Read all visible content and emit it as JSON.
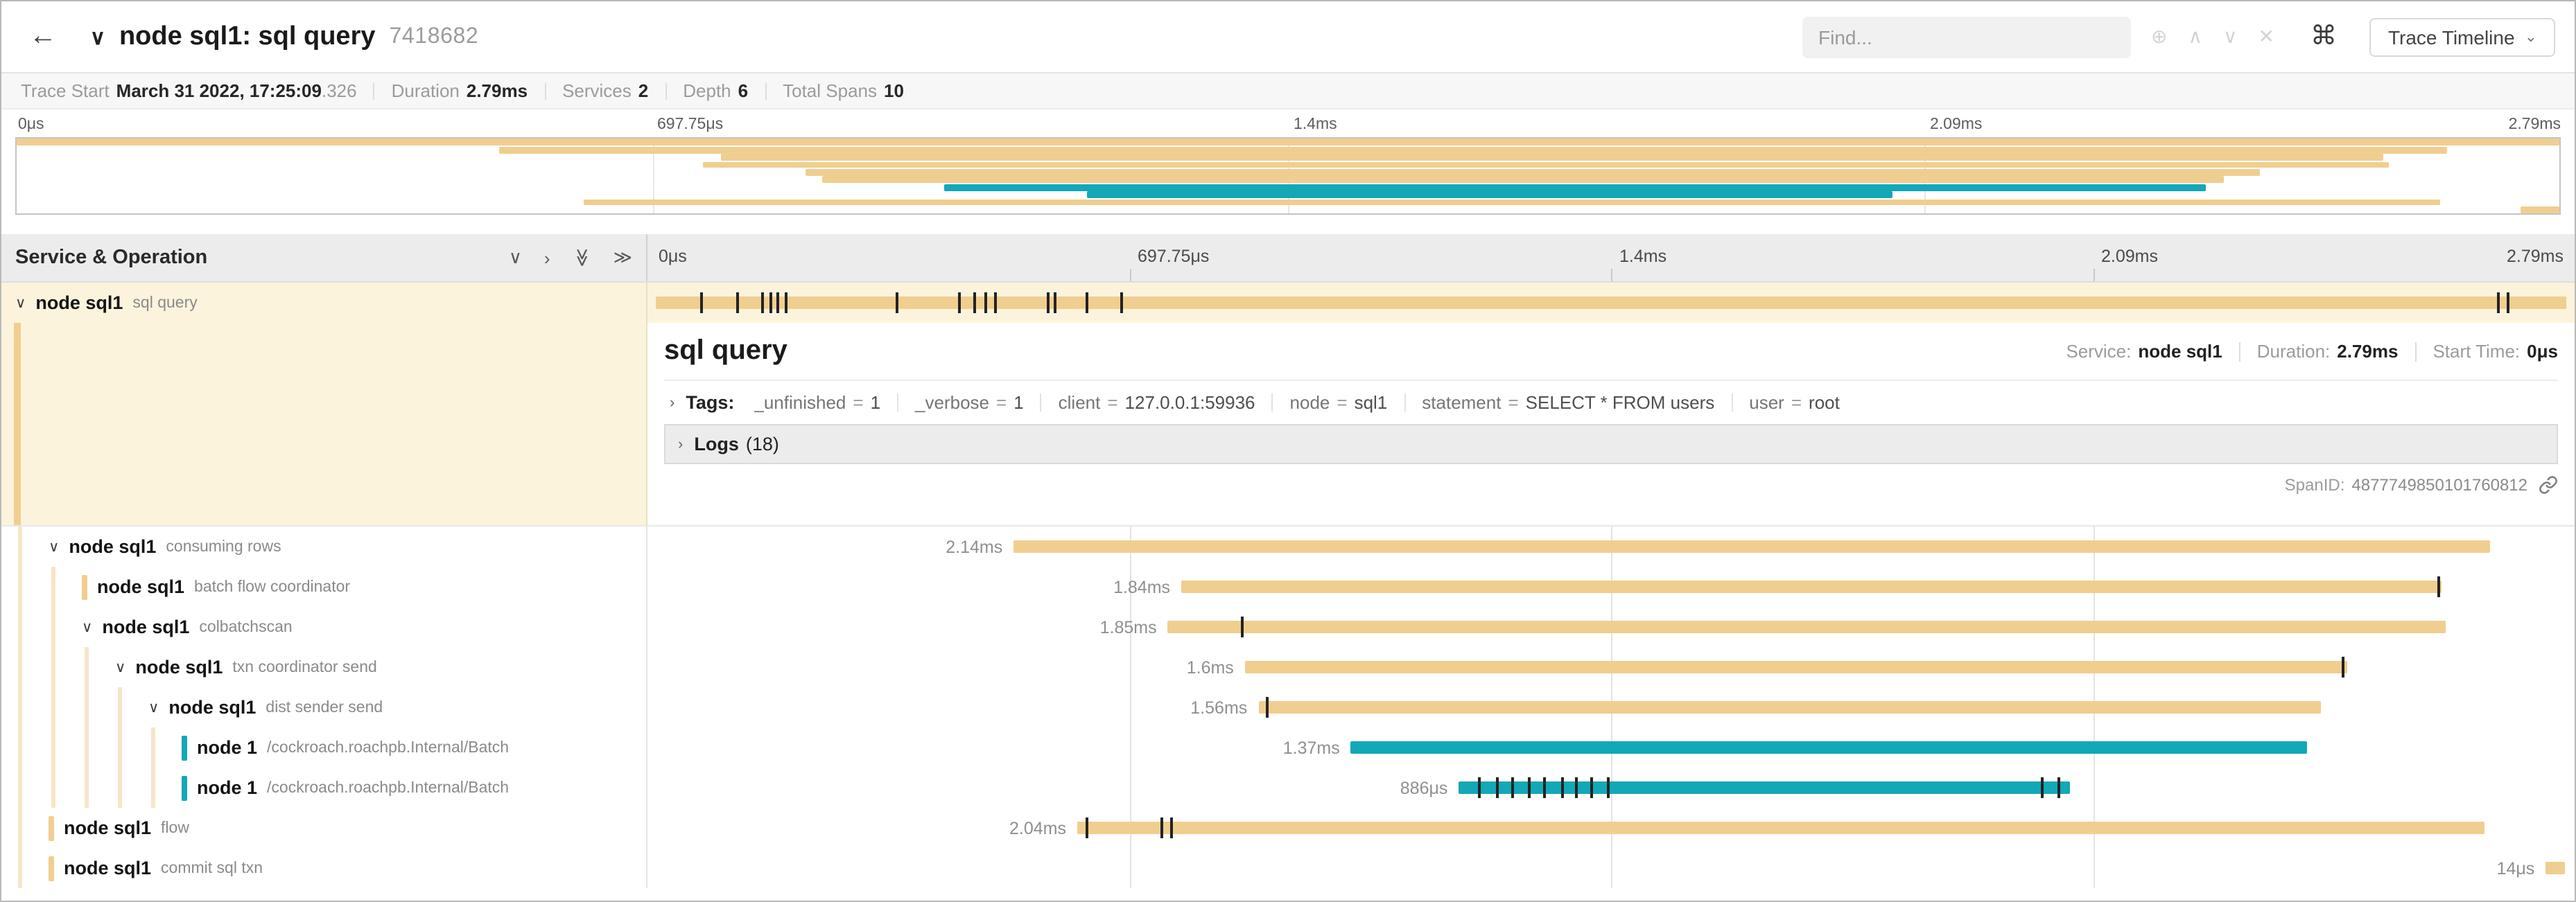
{
  "colors": {
    "tan": "#f0ce90",
    "teal": "#12a8b8",
    "selected_bg": "#fbf3dc"
  },
  "header": {
    "back_icon": "←",
    "collapse_icon": "∨",
    "title": "node sql1: sql query",
    "trace_id": "7418682",
    "find_placeholder": "Find...",
    "find_icons": {
      "locate": "⊕",
      "prev": "∧",
      "next": "∨",
      "clear": "✕"
    },
    "kbd_icon": "⌘",
    "trace_timeline_label": "Trace Timeline",
    "trace_timeline_chevron": "⌄"
  },
  "summary": {
    "trace_start_label": "Trace Start",
    "trace_start_value": "March 31 2022, 17:25:09",
    "trace_start_fraction": ".326",
    "duration_label": "Duration",
    "duration_value": "2.79ms",
    "services_label": "Services",
    "services_value": "2",
    "depth_label": "Depth",
    "depth_value": "6",
    "total_spans_label": "Total Spans",
    "total_spans_value": "10"
  },
  "timeline": {
    "left_header": "Service & Operation",
    "collapse_icons": [
      "∨",
      "›",
      "≫",
      "≫"
    ],
    "ticks": [
      "0μs",
      "697.75μs",
      "1.4ms",
      "2.09ms",
      "2.79ms"
    ]
  },
  "minimap": {
    "rows": [
      {
        "start": 0.0,
        "end": 1.0,
        "color": "tan"
      },
      {
        "start": 0.19,
        "end": 0.956,
        "color": "tan"
      },
      {
        "start": 0.277,
        "end": 0.931,
        "color": "tan"
      },
      {
        "start": 0.27,
        "end": 0.933,
        "color": "tan"
      },
      {
        "start": 0.31,
        "end": 0.882,
        "color": "tan"
      },
      {
        "start": 0.317,
        "end": 0.868,
        "color": "tan"
      },
      {
        "start": 0.365,
        "end": 0.861,
        "color": "teal"
      },
      {
        "start": 0.421,
        "end": 0.738,
        "color": "teal"
      },
      {
        "start": 0.223,
        "end": 0.953,
        "color": "tan"
      },
      {
        "start": 0.985,
        "end": 1.0,
        "color": "tan"
      }
    ]
  },
  "root": {
    "chevron": "∨",
    "service": "node sql1",
    "operation": "sql query",
    "color": "tan",
    "start": 0.004,
    "end": 0.996,
    "ticks": [
      0.027,
      0.046,
      0.059,
      0.063,
      0.067,
      0.071,
      0.129,
      0.161,
      0.169,
      0.175,
      0.18,
      0.207,
      0.211,
      0.227,
      0.245,
      0.96,
      0.965
    ]
  },
  "detail": {
    "title": "sql query",
    "service_label": "Service:",
    "service_value": "node sql1",
    "duration_label": "Duration:",
    "duration_value": "2.79ms",
    "start_label": "Start Time:",
    "start_value": "0μs",
    "accordion_chevron": "›",
    "tags_label": "Tags:",
    "tags": [
      {
        "key": "_unfinished",
        "value": "1"
      },
      {
        "key": "_verbose",
        "value": "1"
      },
      {
        "key": "client",
        "value": "127.0.0.1:59936"
      },
      {
        "key": "node",
        "value": "sql1"
      },
      {
        "key": "statement",
        "value": "SELECT * FROM users"
      },
      {
        "key": "user",
        "value": "root"
      }
    ],
    "logs_label": "Logs",
    "logs_count": "(18)",
    "spanid_label": "SpanID:",
    "spanid_value": "4877749850101760812"
  },
  "spans": [
    {
      "service": "node sql1",
      "operation": "consuming rows",
      "depth": 1,
      "toggle": "chevron",
      "color": "tan",
      "label": "2.14ms",
      "start": 0.19,
      "end": 0.956,
      "ticks": []
    },
    {
      "service": "node sql1",
      "operation": "batch flow coordinator",
      "depth": 2,
      "toggle": "chip",
      "color": "tan",
      "label": "1.84ms",
      "start": 0.277,
      "end": 0.931,
      "ticks": [
        0.929
      ]
    },
    {
      "service": "node sql1",
      "operation": "colbatchscan",
      "depth": 2,
      "toggle": "chevron",
      "color": "tan",
      "label": "1.85ms",
      "start": 0.27,
      "end": 0.933,
      "ticks": [
        0.308
      ]
    },
    {
      "service": "node sql1",
      "operation": "txn coordinator send",
      "depth": 3,
      "toggle": "chevron",
      "color": "tan",
      "label": "1.6ms",
      "start": 0.31,
      "end": 0.882,
      "ticks": [
        0.879
      ]
    },
    {
      "service": "node sql1",
      "operation": "dist sender send",
      "depth": 4,
      "toggle": "chevron",
      "color": "tan",
      "label": "1.56ms",
      "start": 0.317,
      "end": 0.868,
      "ticks": [
        0.321
      ]
    },
    {
      "service": "node 1",
      "operation": "/cockroach.roachpb.Internal/Batch",
      "depth": 5,
      "toggle": "chip",
      "color": "teal",
      "label": "1.37ms",
      "start": 0.365,
      "end": 0.861,
      "ticks": []
    },
    {
      "service": "node 1",
      "operation": "/cockroach.roachpb.Internal/Batch",
      "depth": 5,
      "toggle": "chip",
      "color": "teal",
      "label": "886μs",
      "start": 0.421,
      "end": 0.738,
      "ticks": [
        0.431,
        0.44,
        0.448,
        0.457,
        0.465,
        0.474,
        0.481,
        0.489,
        0.498,
        0.723,
        0.732
      ]
    },
    {
      "service": "node sql1",
      "operation": "flow",
      "depth": 1,
      "toggle": "chip",
      "color": "tan",
      "label": "2.04ms",
      "start": 0.223,
      "end": 0.953,
      "ticks": [
        0.227,
        0.266,
        0.271
      ]
    },
    {
      "service": "node sql1",
      "operation": "commit sql txn",
      "depth": 1,
      "toggle": "chip",
      "color": "tan",
      "label": "14μs",
      "start": 0.985,
      "end": 0.995,
      "ticks": []
    }
  ]
}
